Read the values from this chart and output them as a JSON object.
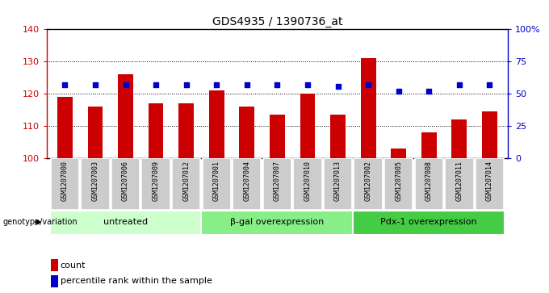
{
  "title": "GDS4935 / 1390736_at",
  "samples": [
    "GSM1207000",
    "GSM1207003",
    "GSM1207006",
    "GSM1207009",
    "GSM1207012",
    "GSM1207001",
    "GSM1207004",
    "GSM1207007",
    "GSM1207010",
    "GSM1207013",
    "GSM1207002",
    "GSM1207005",
    "GSM1207008",
    "GSM1207011",
    "GSM1207014"
  ],
  "counts": [
    119,
    116,
    126,
    117,
    117,
    121,
    116,
    113.5,
    120,
    113.5,
    131,
    103,
    108,
    112,
    114.5
  ],
  "percentile_ranks": [
    57,
    57,
    57,
    57,
    57,
    57,
    57,
    57,
    57,
    56,
    57,
    52,
    52,
    57,
    57
  ],
  "groups": [
    {
      "label": "untreated",
      "start": 0,
      "end": 5,
      "color": "#ccffcc"
    },
    {
      "label": "β-gal overexpression",
      "start": 5,
      "end": 10,
      "color": "#88ee88"
    },
    {
      "label": "Pdx-1 overexpression",
      "start": 10,
      "end": 15,
      "color": "#44cc44"
    }
  ],
  "ylim_left": [
    100,
    140
  ],
  "ylim_right": [
    0,
    100
  ],
  "yticks_left": [
    100,
    110,
    120,
    130,
    140
  ],
  "yticks_right": [
    0,
    25,
    50,
    75,
    100
  ],
  "ytick_labels_right": [
    "0",
    "25",
    "50",
    "75",
    "100%"
  ],
  "bar_color": "#cc0000",
  "dot_color": "#0000cc",
  "bar_width": 0.5,
  "background_color": "#ffffff",
  "geno_label": "genotype/variation"
}
